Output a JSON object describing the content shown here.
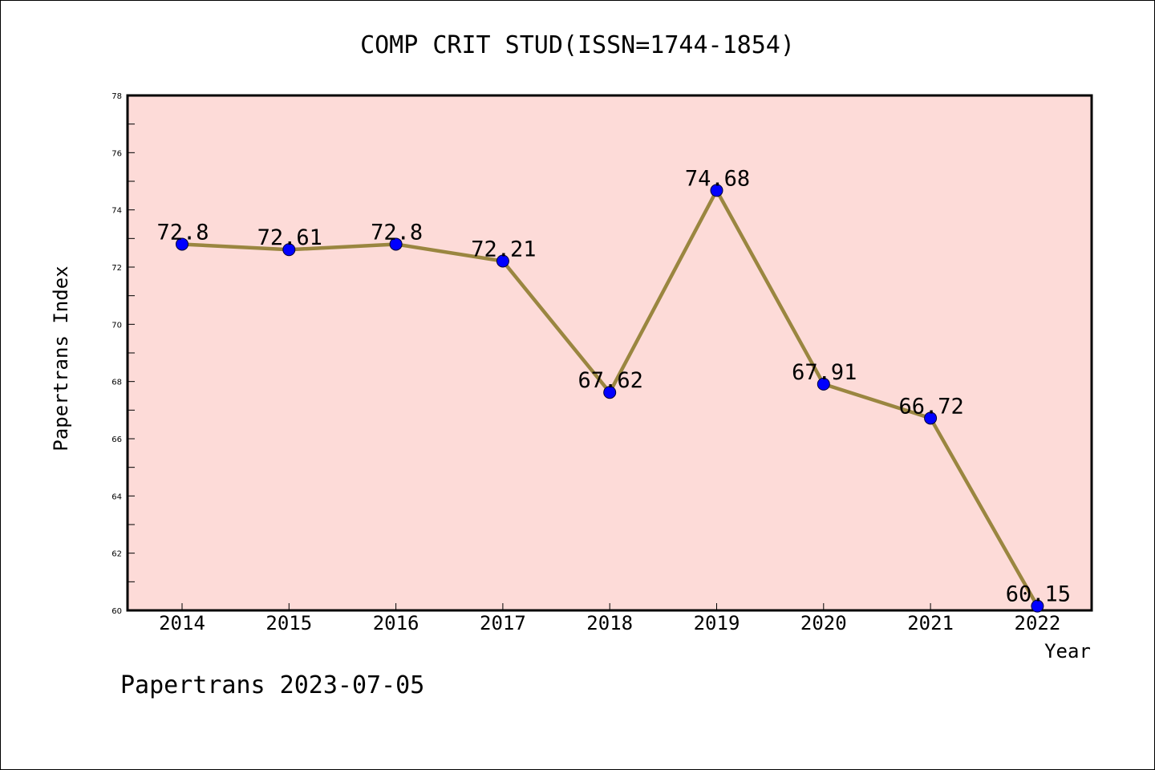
{
  "chart_data": {
    "type": "line",
    "title": "COMP CRIT STUD(ISSN=1744-1854)",
    "xlabel": "Year",
    "ylabel": "Papertrans Index",
    "categories": [
      "2014",
      "2015",
      "2016",
      "2017",
      "2018",
      "2019",
      "2020",
      "2021",
      "2022"
    ],
    "values": [
      72.8,
      72.61,
      72.8,
      72.21,
      67.62,
      74.68,
      67.91,
      66.72,
      60.15
    ],
    "data_labels": [
      "72.8",
      "72.61",
      "72.8",
      "72.21",
      "67.62",
      "74.68",
      "67.91",
      "66.72",
      "60.15"
    ],
    "ylim": [
      60,
      78
    ],
    "yticks": [
      "60",
      "62",
      "64",
      "66",
      "68",
      "70",
      "72",
      "74",
      "76",
      "78"
    ],
    "grid": false,
    "colors": {
      "plot_background": "#fddbd8",
      "line": "#9a8640",
      "marker": "#0000ff"
    }
  },
  "footer": "Papertrans 2023-07-05"
}
